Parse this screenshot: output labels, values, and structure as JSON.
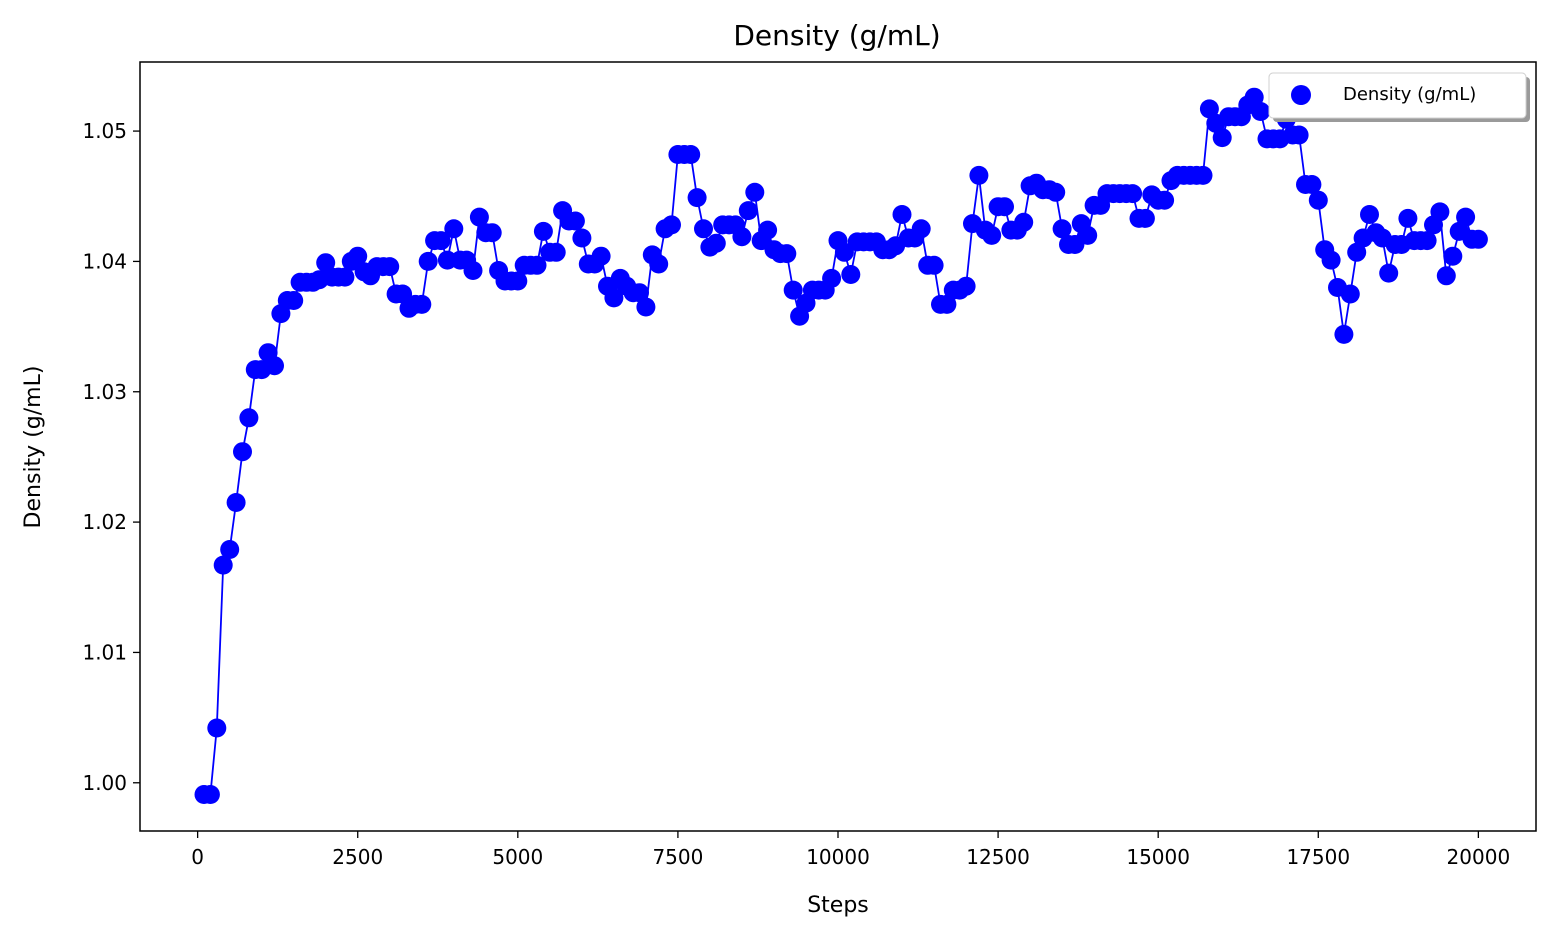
{
  "chart_data": {
    "type": "scatter",
    "title": "Density (g/mL)",
    "xlabel": "Steps",
    "ylabel": "Density (g/mL)",
    "xlim": [
      -900,
      20900
    ],
    "ylim": [
      0.9963,
      1.0553
    ],
    "xticks": [
      0,
      2500,
      5000,
      7500,
      10000,
      12500,
      15000,
      17500,
      20000
    ],
    "xtick_labels": [
      "0",
      "2500",
      "5000",
      "7500",
      "10000",
      "12500",
      "15000",
      "17500",
      "20000"
    ],
    "yticks": [
      1.0,
      1.01,
      1.02,
      1.03,
      1.04,
      1.05
    ],
    "ytick_labels": [
      "1.00",
      "1.01",
      "1.02",
      "1.03",
      "1.04",
      "1.05"
    ],
    "grid": false,
    "legend_position": "top-right",
    "series": [
      {
        "name": "Density (g/mL)",
        "color": "#0000ff",
        "marker": "circle",
        "connected": true,
        "x": [
          100,
          200,
          300,
          400,
          500,
          600,
          700,
          800,
          900,
          1000,
          1100,
          1200,
          1300,
          1400,
          1500,
          1600,
          1700,
          1800,
          1900,
          2000,
          2100,
          2200,
          2300,
          2400,
          2500,
          2600,
          2700,
          2800,
          2900,
          3000,
          3100,
          3200,
          3300,
          3400,
          3500,
          3600,
          3700,
          3800,
          3900,
          4000,
          4100,
          4200,
          4300,
          4400,
          4500,
          4600,
          4700,
          4800,
          4900,
          5000,
          5100,
          5200,
          5300,
          5400,
          5500,
          5600,
          5700,
          5800,
          5900,
          6000,
          6100,
          6200,
          6300,
          6400,
          6500,
          6600,
          6700,
          6800,
          6900,
          7000,
          7100,
          7200,
          7300,
          7400,
          7500,
          7600,
          7700,
          7800,
          7900,
          8000,
          8100,
          8200,
          8300,
          8400,
          8500,
          8600,
          8700,
          8800,
          8900,
          9000,
          9100,
          9200,
          9300,
          9400,
          9500,
          9600,
          9700,
          9800,
          9900,
          10000,
          10100,
          10200,
          10300,
          10400,
          10500,
          10600,
          10700,
          10800,
          10900,
          11000,
          11100,
          11200,
          11300,
          11400,
          11500,
          11600,
          11700,
          11800,
          11900,
          12000,
          12100,
          12200,
          12300,
          12400,
          12500,
          12600,
          12700,
          12800,
          12900,
          13000,
          13100,
          13200,
          13300,
          13400,
          13500,
          13600,
          13700,
          13800,
          13900,
          14000,
          14100,
          14200,
          14300,
          14400,
          14500,
          14600,
          14700,
          14800,
          14900,
          15000,
          15100,
          15200,
          15300,
          15400,
          15500,
          15600,
          15700,
          15800,
          15900,
          16000,
          16100,
          16200,
          16300,
          16400,
          16500,
          16600,
          16700,
          16800,
          16900,
          17000,
          17100,
          17200,
          17300,
          17400,
          17500,
          17600,
          17700,
          17800,
          17900,
          18000,
          18100,
          18200,
          18300,
          18400,
          18500,
          18600,
          18700,
          18800,
          18900,
          19000,
          19100,
          19200,
          19300,
          19400,
          19500,
          19600,
          19700,
          19800,
          19900,
          20000
        ],
        "y": [
          0.9991,
          0.9991,
          1.0042,
          1.0167,
          1.0179,
          1.0215,
          1.0254,
          1.028,
          1.0317,
          1.0317,
          1.033,
          1.032,
          1.036,
          1.037,
          1.037,
          1.0384,
          1.0384,
          1.0384,
          1.0386,
          1.0399,
          1.0388,
          1.0388,
          1.0388,
          1.04,
          1.0404,
          1.0392,
          1.0389,
          1.0396,
          1.0396,
          1.0396,
          1.0375,
          1.0375,
          1.0364,
          1.0367,
          1.0367,
          1.04,
          1.0416,
          1.0416,
          1.0401,
          1.0425,
          1.0401,
          1.0401,
          1.0393,
          1.0434,
          1.0422,
          1.0422,
          1.0393,
          1.0385,
          1.0385,
          1.0385,
          1.0397,
          1.0397,
          1.0397,
          1.0423,
          1.0407,
          1.0407,
          1.0439,
          1.0431,
          1.0431,
          1.0418,
          1.0398,
          1.0398,
          1.0404,
          1.0381,
          1.0372,
          1.0387,
          1.0381,
          1.0376,
          1.0376,
          1.0365,
          1.0405,
          1.0398,
          1.0425,
          1.0428,
          1.0482,
          1.0482,
          1.0482,
          1.0449,
          1.0425,
          1.0411,
          1.0414,
          1.0428,
          1.0428,
          1.0428,
          1.0419,
          1.0439,
          1.0453,
          1.0416,
          1.0424,
          1.0409,
          1.0406,
          1.0406,
          1.0378,
          1.0358,
          1.0368,
          1.0378,
          1.0378,
          1.0378,
          1.0387,
          1.0416,
          1.0407,
          1.039,
          1.0415,
          1.0415,
          1.0415,
          1.0415,
          1.0409,
          1.0409,
          1.0412,
          1.0436,
          1.0418,
          1.0418,
          1.0425,
          1.0397,
          1.0397,
          1.0367,
          1.0367,
          1.0378,
          1.0378,
          1.0381,
          1.0429,
          1.0466,
          1.0424,
          1.042,
          1.0442,
          1.0442,
          1.0424,
          1.0424,
          1.043,
          1.0458,
          1.046,
          1.0455,
          1.0455,
          1.0453,
          1.0425,
          1.0413,
          1.0413,
          1.0429,
          1.042,
          1.0443,
          1.0443,
          1.0452,
          1.0452,
          1.0452,
          1.0452,
          1.0452,
          1.0433,
          1.0433,
          1.0451,
          1.0447,
          1.0447,
          1.0462,
          1.0466,
          1.0466,
          1.0466,
          1.0466,
          1.0466,
          1.0517,
          1.0506,
          1.0495,
          1.0511,
          1.0511,
          1.0511,
          1.052,
          1.0526,
          1.0515,
          1.0494,
          1.0494,
          1.0494,
          1.0509,
          1.0497,
          1.0497,
          1.0459,
          1.0459,
          1.0447,
          1.0409,
          1.0401,
          1.038,
          1.0344,
          1.0375,
          1.0407,
          1.0418,
          1.0436,
          1.0422,
          1.0418,
          1.0391,
          1.0413,
          1.0413,
          1.0433,
          1.0416,
          1.0416,
          1.0416,
          1.0428,
          1.0438,
          1.0389,
          1.0404,
          1.0423,
          1.0434,
          1.0417,
          1.0417
        ]
      }
    ]
  }
}
